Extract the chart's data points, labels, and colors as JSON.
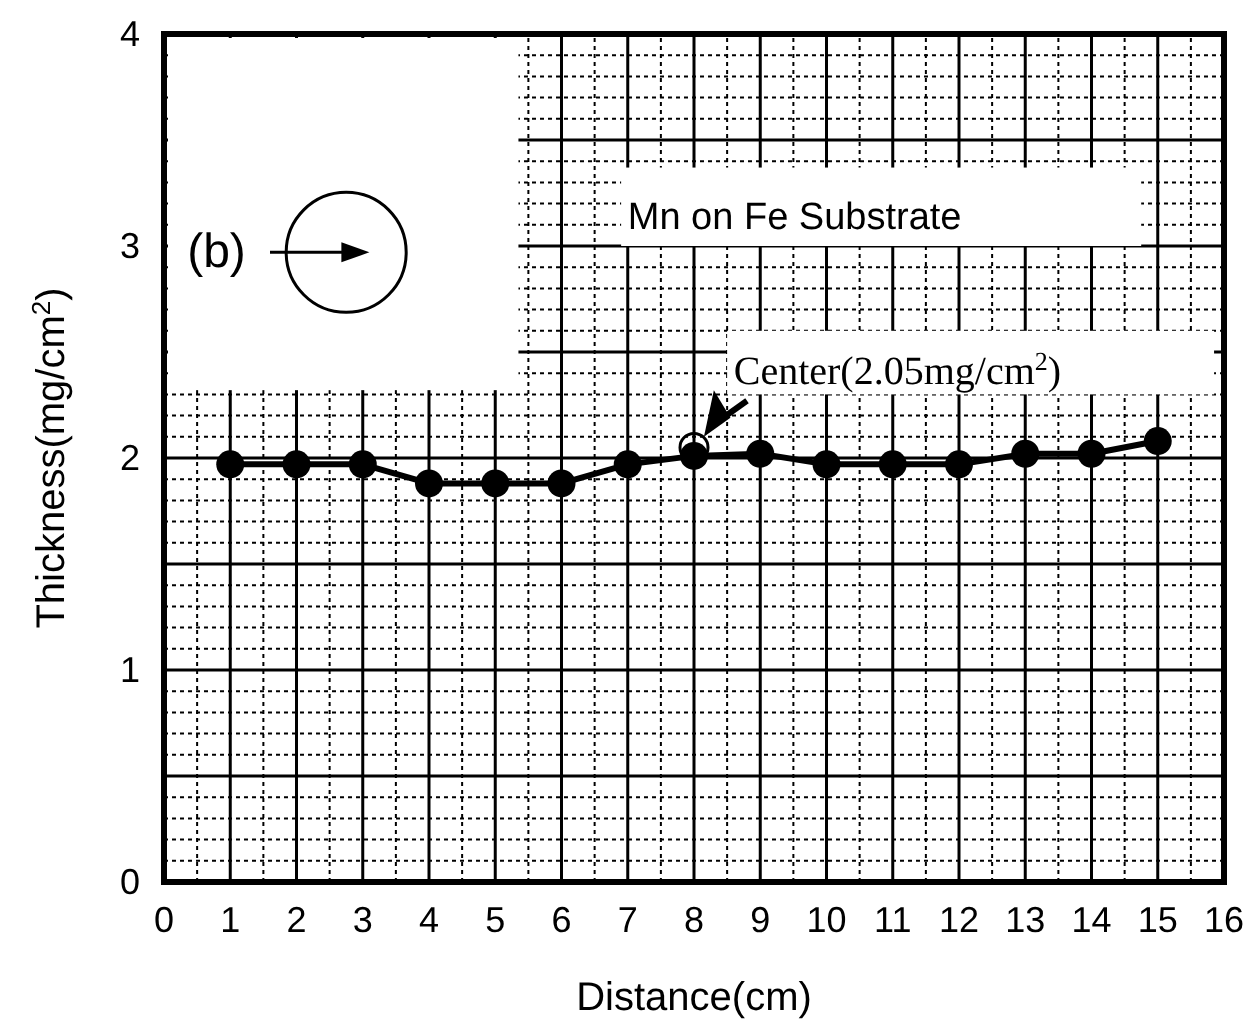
{
  "chart_data": {
    "type": "line",
    "xlabel": "Distance(cm)",
    "ylabel": "Thickness(mg/cm$^{2}$)",
    "x": [
      1,
      2,
      3,
      4,
      5,
      6,
      7,
      8,
      9,
      10,
      11,
      12,
      13,
      14,
      15
    ],
    "series": [
      {
        "color": "#000000",
        "values": [
          1.97,
          1.97,
          1.97,
          1.88,
          1.88,
          1.88,
          1.97,
          2.01,
          2.02,
          1.97,
          1.97,
          1.97,
          2.02,
          2.02,
          2.08
        ]
      }
    ],
    "xlim": [
      0,
      16
    ],
    "xticks": [
      0,
      1,
      2,
      3,
      4,
      5,
      6,
      7,
      8,
      9,
      10,
      11,
      12,
      13,
      14,
      15,
      16
    ],
    "ylim": [
      0,
      4
    ],
    "yticks": [
      0,
      1,
      2,
      3,
      4
    ],
    "grid": true,
    "marker": "circle",
    "line_style": "solid",
    "annotations": [
      "(b)",
      "Mn on Fe Substrate",
      {
        "text": "Center(2.05mg/cm$^{2}$)",
        "x": 8,
        "y": 2.05
      }
    ]
  }
}
